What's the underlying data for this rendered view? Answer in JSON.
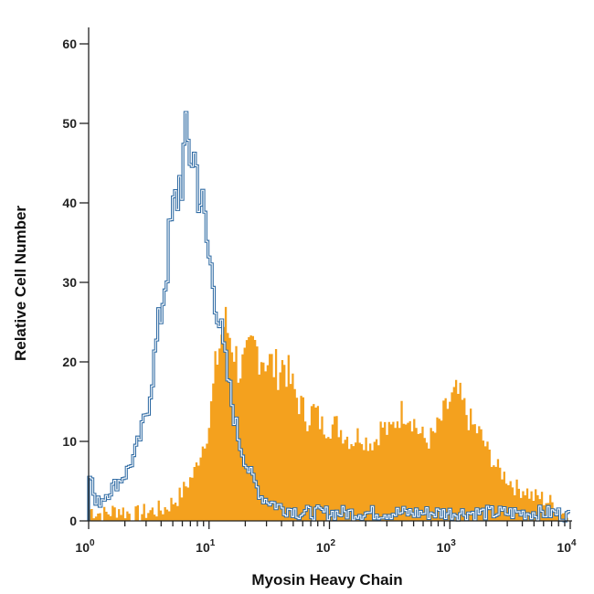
{
  "chart_data": {
    "type": "area",
    "xlabel": "Myosin Heavy Chain",
    "ylabel": "Relative Cell Number",
    "x_scale": "log10",
    "xlim": [
      1,
      10000
    ],
    "ylim": [
      0,
      60
    ],
    "grid": false,
    "x_ticks": [
      {
        "base": "10",
        "exp": "0",
        "value": 1
      },
      {
        "base": "10",
        "exp": "1",
        "value": 10
      },
      {
        "base": "10",
        "exp": "2",
        "value": 100
      },
      {
        "base": "10",
        "exp": "3",
        "value": 1000
      },
      {
        "base": "10",
        "exp": "4",
        "value": 10000
      }
    ],
    "y_ticks": [
      "0",
      "10",
      "20",
      "30",
      "40",
      "50",
      "60"
    ],
    "series": [
      {
        "style": "filled",
        "color": "#F4A11E",
        "x": [
          1.0,
          1.33,
          1.78,
          2.37,
          3.16,
          4.22,
          5.62,
          7.5,
          10.0,
          11.5,
          13.3,
          15.4,
          17.8,
          20.5,
          23.7,
          27.4,
          31.6,
          36.5,
          42.2,
          48.7,
          56.2,
          65.0,
          75.0,
          86.6,
          100.0,
          115,
          133,
          154,
          178,
          205,
          237,
          274,
          316,
          365,
          422,
          487,
          562,
          650,
          750,
          866,
          1000,
          1155,
          1334,
          1540,
          1778,
          2054,
          2371,
          2738,
          3162,
          3652,
          4217,
          4870,
          5623,
          6494,
          7499,
          8660,
          10000
        ],
        "y": [
          1.5,
          0.8,
          1.5,
          0.7,
          1.2,
          1.5,
          3,
          6,
          12,
          20,
          25,
          23,
          19,
          20,
          22,
          21,
          20,
          19,
          20,
          17,
          15,
          13,
          14,
          12,
          12,
          12,
          11,
          10,
          11,
          10,
          10,
          12,
          11,
          13,
          14,
          13,
          11,
          10,
          11,
          13,
          15,
          16,
          14,
          12,
          11,
          9,
          7,
          6,
          5,
          4,
          4,
          3,
          3,
          2.5,
          2,
          1.2,
          0.5
        ]
      },
      {
        "style": "outline",
        "color": "#2E6AA3",
        "x": [
          1.0,
          1.15,
          1.33,
          1.54,
          1.78,
          2.05,
          2.37,
          2.74,
          3.16,
          3.65,
          4.22,
          4.87,
          5.62,
          6.49,
          7.5,
          8.66,
          10.0,
          11.5,
          13.3,
          15.4,
          17.8,
          20.5,
          23.7,
          27.4,
          31.6,
          36.5,
          42.2,
          48.7,
          56.2,
          65.0,
          75.0,
          86.6,
          100,
          133,
          178,
          237,
          316,
          422,
          562,
          750,
          1000,
          1334,
          1778,
          2371,
          3162,
          4217,
          5623,
          7499,
          10000
        ],
        "y": [
          7,
          2,
          3,
          4,
          5,
          6,
          8,
          11,
          15,
          22,
          29,
          37,
          42,
          47,
          46,
          40,
          33,
          28,
          21,
          15,
          10,
          7,
          5,
          3,
          2.5,
          2,
          1.5,
          1.5,
          1,
          1,
          1,
          1,
          1,
          1,
          1,
          1,
          1,
          1,
          1,
          1,
          1,
          1,
          1,
          1,
          1,
          1,
          1,
          1,
          0.5
        ]
      }
    ]
  }
}
